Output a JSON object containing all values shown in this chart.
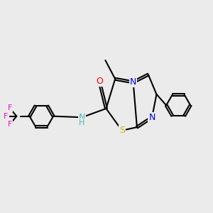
{
  "background_color": "#ebebeb",
  "bond_color": "#000000",
  "atom_colors": {
    "N": "#0000ff",
    "S": "#c8b400",
    "O": "#ff0000",
    "F": "#ff00cc",
    "NH_color": "#4ab4b4",
    "C": "#000000"
  },
  "lw": 1.5,
  "dbo": 0.055,
  "figsize": [
    3.0,
    3.0
  ],
  "dpi": 100
}
